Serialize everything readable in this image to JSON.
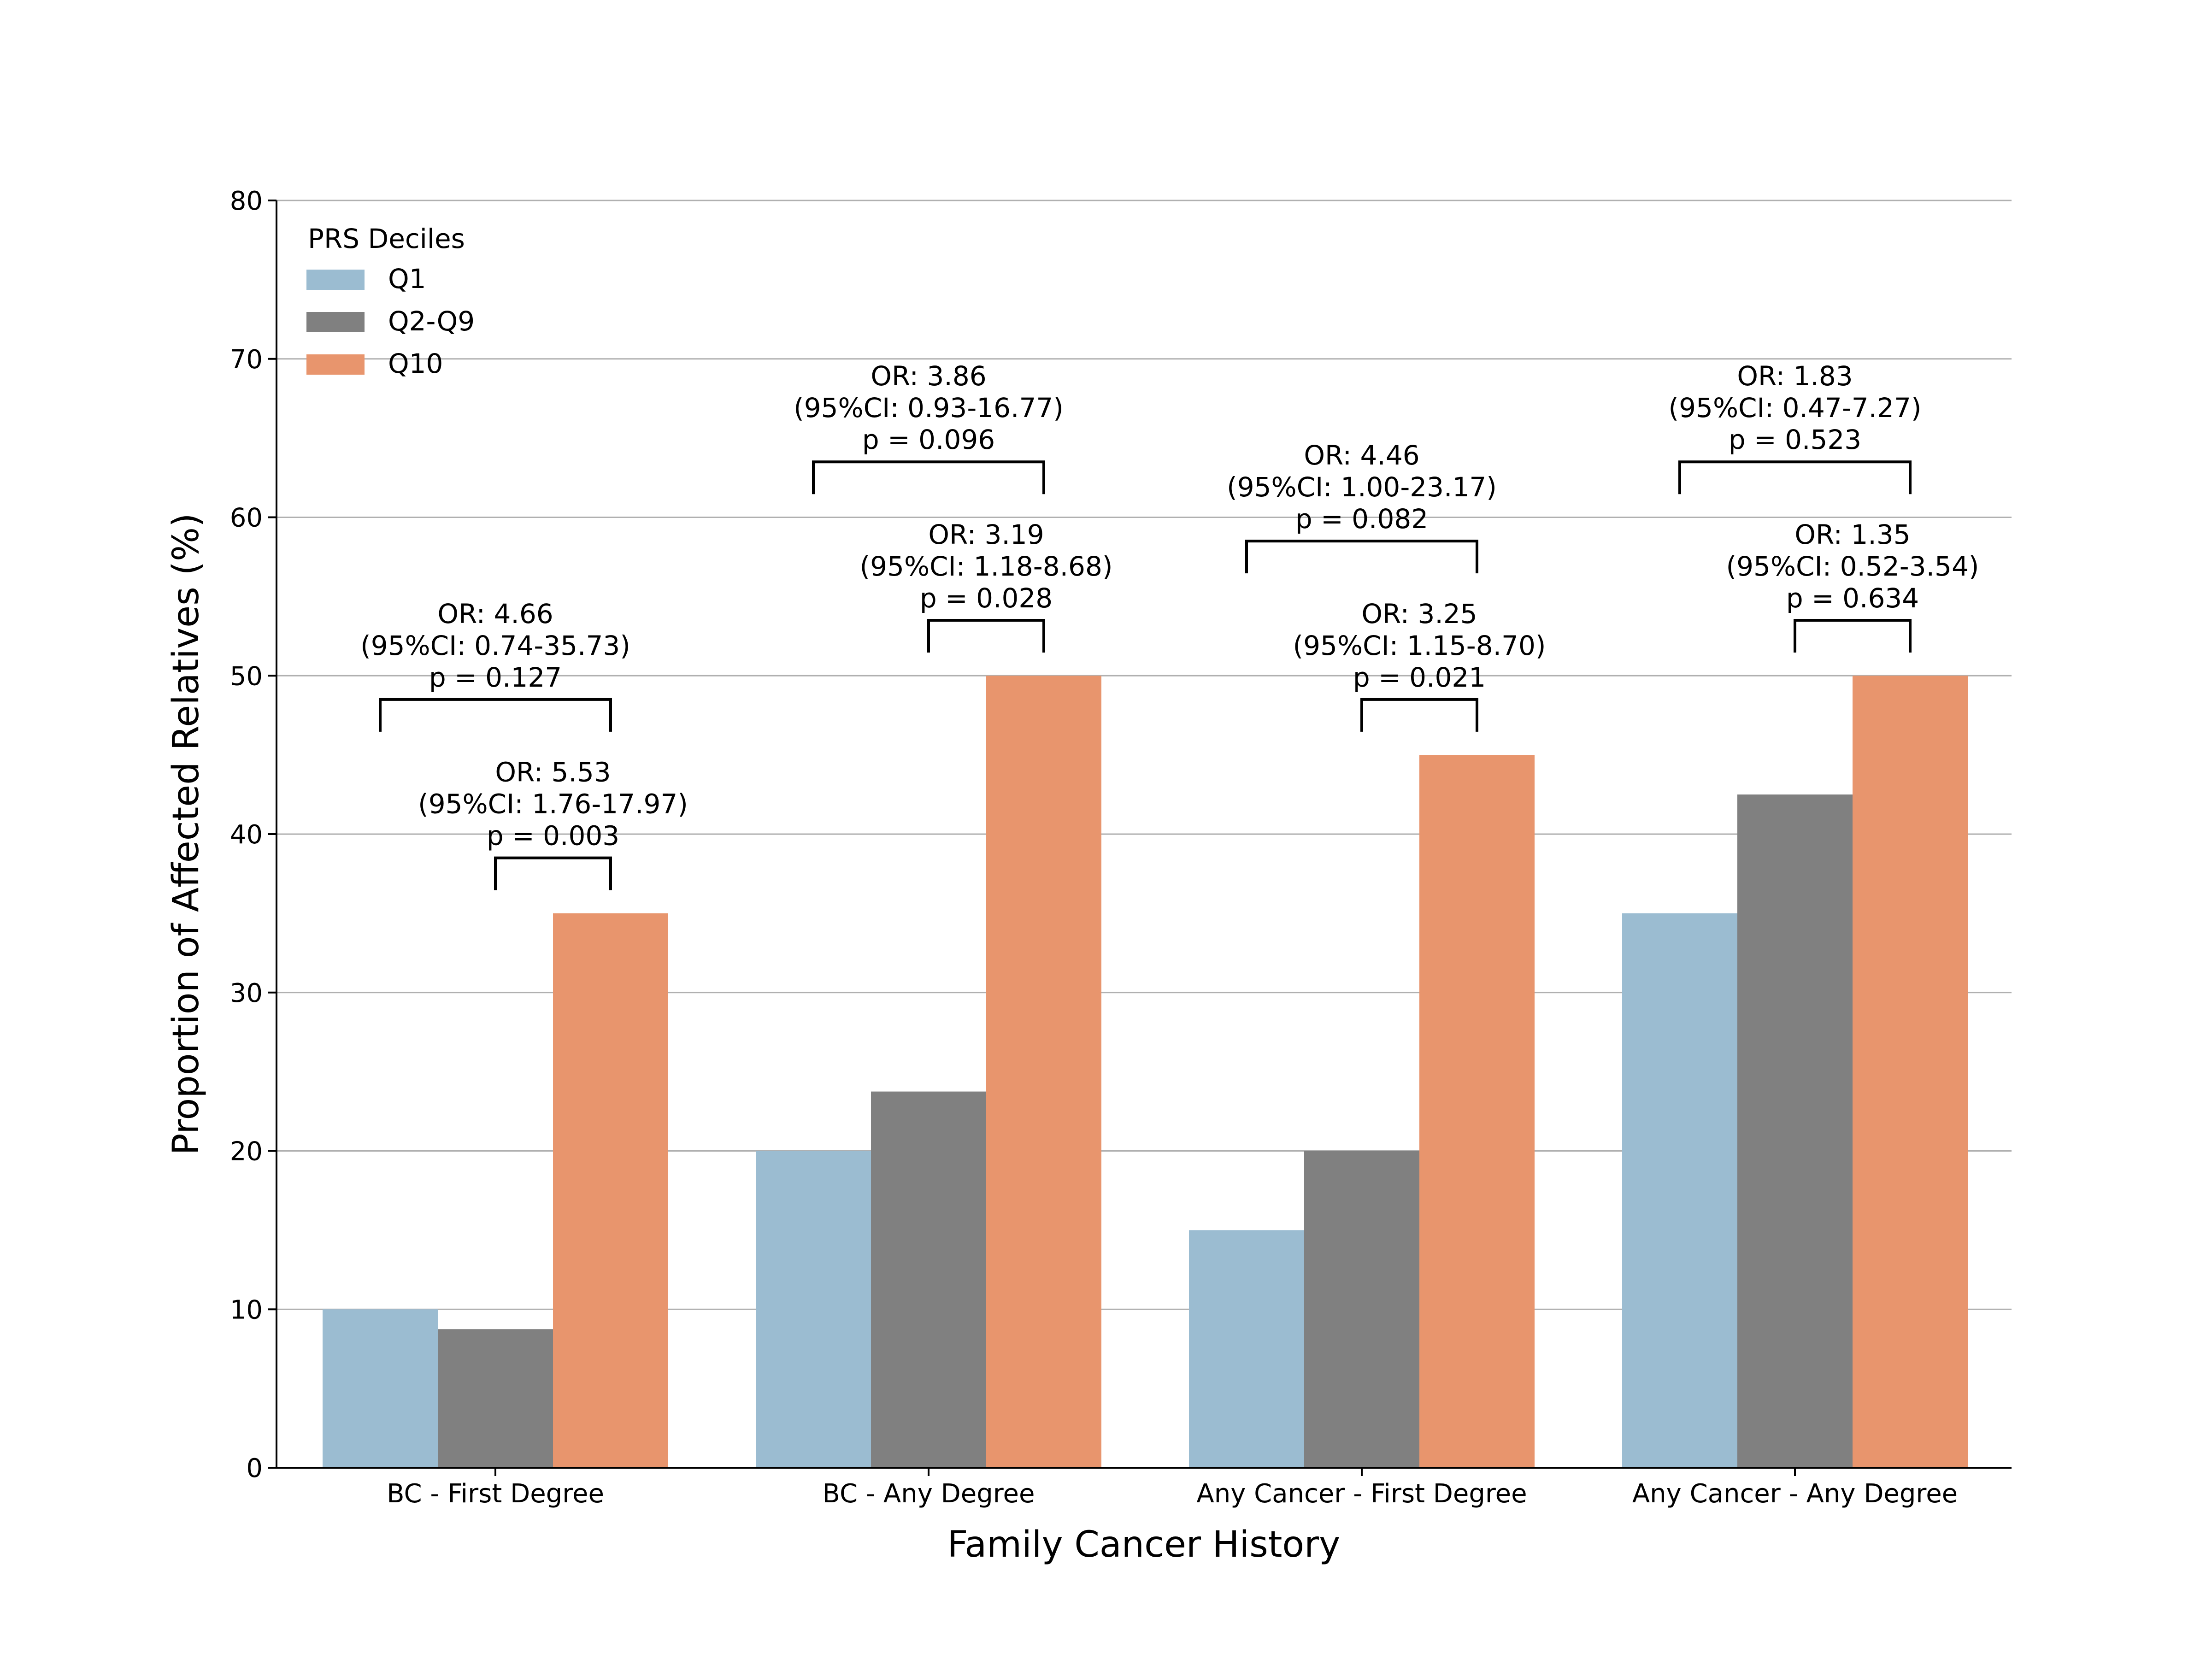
{
  "chart_data": {
    "type": "bar",
    "title": "",
    "xlabel": "Family Cancer History",
    "ylabel": "Proportion of Affected Relatives (%)",
    "ylim": [
      0,
      80
    ],
    "yticks": [
      "0",
      "10",
      "20",
      "30",
      "40",
      "50",
      "60",
      "70",
      "80"
    ],
    "grid": "horizontal",
    "categories": [
      "BC - First Degree",
      "BC - Any Degree",
      "Any Cancer - First Degree",
      "Any Cancer - Any Degree"
    ],
    "legend": {
      "title": "PRS Deciles",
      "placement": "top-left"
    },
    "series": [
      {
        "name": "Q1",
        "color": "#9bbcd1",
        "values": [
          10,
          20,
          15,
          35
        ]
      },
      {
        "name": "Q2-Q9",
        "color": "#808080",
        "values": [
          8.75,
          23.75,
          20,
          42.5
        ]
      },
      {
        "name": "Q10",
        "color": "#e8956d",
        "values": [
          35,
          50,
          45,
          50
        ]
      }
    ],
    "annotations": [
      {
        "category": 0,
        "from": 0,
        "to": 2,
        "level": 48.5,
        "lines": [
          "OR: 4.66",
          "(95%CI: 0.74-35.73)",
          "p = 0.127"
        ]
      },
      {
        "category": 0,
        "from": 1,
        "to": 2,
        "level": 38.5,
        "lines": [
          "OR: 5.53",
          "(95%CI: 1.76-17.97)",
          "p = 0.003"
        ]
      },
      {
        "category": 1,
        "from": 0,
        "to": 2,
        "level": 63.5,
        "lines": [
          "OR: 3.86",
          "(95%CI: 0.93-16.77)",
          "p = 0.096"
        ]
      },
      {
        "category": 1,
        "from": 1,
        "to": 2,
        "level": 53.5,
        "lines": [
          "OR: 3.19",
          "(95%CI: 1.18-8.68)",
          "p = 0.028"
        ]
      },
      {
        "category": 2,
        "from": 0,
        "to": 2,
        "level": 58.5,
        "lines": [
          "OR: 4.46",
          "(95%CI: 1.00-23.17)",
          "p = 0.082"
        ]
      },
      {
        "category": 2,
        "from": 1,
        "to": 2,
        "level": 48.5,
        "lines": [
          "OR: 3.25",
          "(95%CI: 1.15-8.70)",
          "p = 0.021"
        ]
      },
      {
        "category": 3,
        "from": 0,
        "to": 2,
        "level": 63.5,
        "lines": [
          "OR: 1.83",
          "(95%CI: 0.47-7.27)",
          "p = 0.523"
        ]
      },
      {
        "category": 3,
        "from": 1,
        "to": 2,
        "level": 53.5,
        "lines": [
          "OR: 1.35",
          "(95%CI: 0.52-3.54)",
          "p = 0.634"
        ]
      }
    ]
  }
}
